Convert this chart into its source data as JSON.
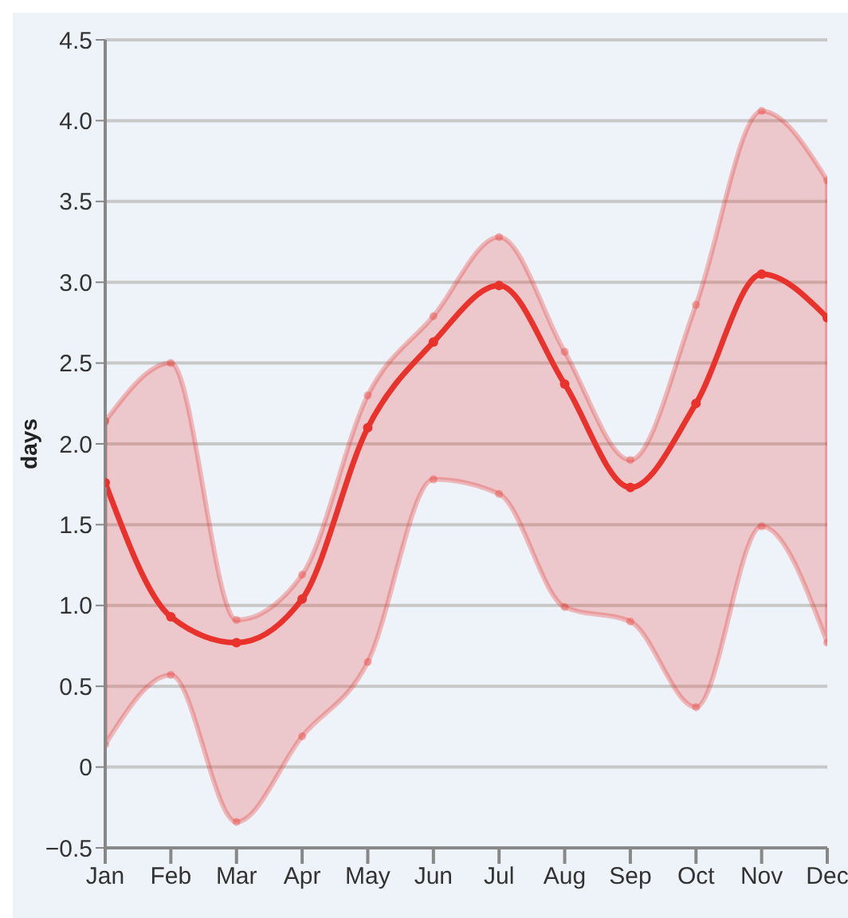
{
  "chart_data": {
    "type": "line",
    "ylabel": "days",
    "categories": [
      "Jan",
      "Feb",
      "Mar",
      "Apr",
      "May",
      "Jun",
      "Jul",
      "Aug",
      "Sep",
      "Oct",
      "Nov",
      "Dec"
    ],
    "series": [
      {
        "color": "#e8322b",
        "values": [
          1.76,
          0.93,
          0.77,
          1.04,
          2.1,
          2.63,
          2.98,
          2.37,
          1.73,
          2.25,
          3.05,
          2.78
        ],
        "lower": [
          0.14,
          0.57,
          -0.34,
          0.19,
          0.65,
          1.78,
          1.69,
          0.99,
          0.9,
          0.37,
          1.49,
          0.77
        ],
        "upper": [
          2.14,
          2.5,
          0.91,
          1.19,
          2.3,
          2.79,
          3.28,
          2.57,
          1.9,
          2.86,
          4.06,
          3.63
        ]
      }
    ],
    "ylim": [
      -0.5,
      4.5
    ],
    "yticks": [
      {
        "value": -0.5,
        "label": "−0.5"
      },
      0,
      0.5,
      {
        "value": 1,
        "label": "1.0"
      },
      1.5,
      {
        "value": 2,
        "label": "2.0"
      },
      2.5,
      {
        "value": 3,
        "label": "3.0"
      },
      3.5,
      {
        "value": 4,
        "label": "4.0"
      },
      4.5
    ],
    "grid": "y",
    "legend": false,
    "marker": "circle",
    "line_style": "solid"
  }
}
